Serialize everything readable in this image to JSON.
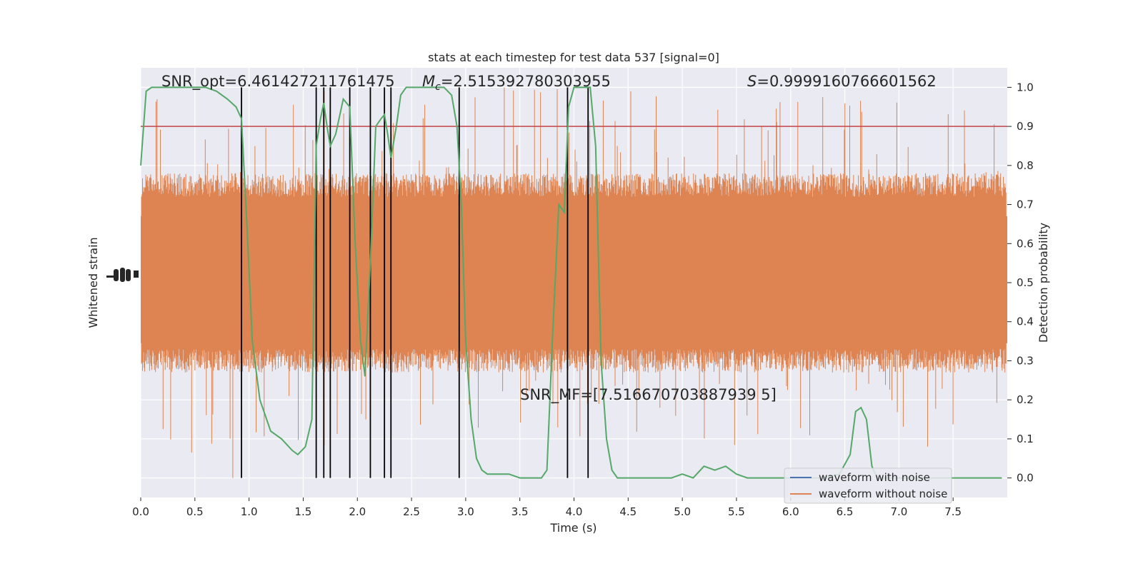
{
  "chart_data": {
    "type": "line",
    "title": "stats at each timestep for test data 537 [signal=0]",
    "xlabel": "Time (s)",
    "ylabel_left": "Whitened strain",
    "ylabel_right": "Detection probability",
    "xlim": [
      0,
      8.0
    ],
    "ylim_right": [
      -0.05,
      1.05
    ],
    "x_ticks": [
      0.0,
      0.5,
      1.0,
      1.5,
      2.0,
      2.5,
      3.0,
      3.5,
      4.0,
      4.5,
      5.0,
      5.5,
      6.0,
      6.5,
      7.0,
      7.5
    ],
    "y_ticks_right": [
      0.0,
      0.1,
      0.2,
      0.3,
      0.4,
      0.5,
      0.6,
      0.7,
      0.8,
      0.9,
      1.0
    ],
    "grid": true,
    "threshold": 0.9,
    "vertical_lines_x": [
      0.93,
      1.62,
      1.69,
      1.75,
      1.93,
      2.12,
      2.25,
      2.31,
      2.94,
      3.94,
      4.13
    ],
    "annotations": {
      "snr_opt": "SNR_opt=6.461427211761475",
      "mc": "=2.515392780303955",
      "s": "=0.9999160766601562",
      "snr_mf": "SNR_MF=[7.516670703887939 5]"
    },
    "legend": {
      "placement": "lower-right",
      "entries": [
        "waveform with noise",
        "waveform without noise"
      ]
    },
    "colors": {
      "noise_fill": "#dd8452",
      "prob_line": "#55a868",
      "threshold_line": "#c44e52",
      "with_noise": "#4c72b0",
      "vlines": "#000000",
      "background": "#eaeaf2"
    },
    "series": [
      {
        "name": "waveform with noise",
        "values": []
      },
      {
        "name": "waveform without noise",
        "envelope_prob_units": {
          "typical_low": 0.29,
          "typical_high": 0.72,
          "spike_high_max": 1.0,
          "spike_low_min": 0.0
        }
      },
      {
        "name": "detection probability",
        "x": [
          0.0,
          0.05,
          0.1,
          0.15,
          0.2,
          0.3,
          0.4,
          0.5,
          0.6,
          0.7,
          0.8,
          0.88,
          0.93,
          0.98,
          1.03,
          1.1,
          1.2,
          1.3,
          1.4,
          1.45,
          1.52,
          1.58,
          1.62,
          1.66,
          1.69,
          1.72,
          1.75,
          1.8,
          1.87,
          1.93,
          1.98,
          2.03,
          2.07,
          2.12,
          2.17,
          2.22,
          2.25,
          2.28,
          2.31,
          2.36,
          2.4,
          2.45,
          2.5,
          2.6,
          2.7,
          2.8,
          2.87,
          2.92,
          2.96,
          3.0,
          3.05,
          3.1,
          3.15,
          3.2,
          3.25,
          3.3,
          3.4,
          3.5,
          3.6,
          3.7,
          3.75,
          3.8,
          3.86,
          3.91,
          3.95,
          4.0,
          4.05,
          4.1,
          4.15,
          4.2,
          4.25,
          4.3,
          4.35,
          4.4,
          4.5,
          4.6,
          4.7,
          4.8,
          4.9,
          5.0,
          5.1,
          5.2,
          5.3,
          5.4,
          5.5,
          5.6,
          5.7,
          5.9,
          6.1,
          6.3,
          6.45,
          6.55,
          6.6,
          6.65,
          6.7,
          6.75,
          6.8,
          6.9,
          7.0,
          7.2,
          7.5,
          7.95
        ],
        "y": [
          0.8,
          0.99,
          1.0,
          1.0,
          1.0,
          1.0,
          1.0,
          1.0,
          1.0,
          0.99,
          0.97,
          0.95,
          0.92,
          0.65,
          0.35,
          0.2,
          0.12,
          0.1,
          0.07,
          0.06,
          0.08,
          0.15,
          0.85,
          0.92,
          0.96,
          0.9,
          0.85,
          0.88,
          0.97,
          0.95,
          0.6,
          0.35,
          0.26,
          0.55,
          0.9,
          0.92,
          0.93,
          0.88,
          0.82,
          0.9,
          0.98,
          1.0,
          1.0,
          1.0,
          1.0,
          1.0,
          0.98,
          0.9,
          0.7,
          0.35,
          0.15,
          0.05,
          0.02,
          0.01,
          0.01,
          0.01,
          0.01,
          0.0,
          0.0,
          0.0,
          0.02,
          0.35,
          0.7,
          0.68,
          0.95,
          1.0,
          1.0,
          1.0,
          1.0,
          0.85,
          0.3,
          0.1,
          0.02,
          0.0,
          0.0,
          0.0,
          0.0,
          0.0,
          0.0,
          0.01,
          0.0,
          0.03,
          0.02,
          0.03,
          0.01,
          0.0,
          0.0,
          0.0,
          0.0,
          0.0,
          0.01,
          0.06,
          0.17,
          0.18,
          0.15,
          0.03,
          0.0,
          0.0,
          0.0,
          0.0,
          0.0,
          0.0
        ]
      }
    ]
  }
}
